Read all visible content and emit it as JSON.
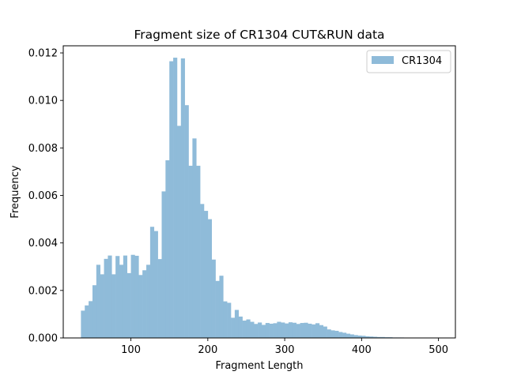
{
  "chart_data": {
    "type": "bar",
    "title": "Fragment size of CR1304 CUT&RUN data",
    "xlabel": "Fragment Length",
    "ylabel": "Frequency",
    "xlim": [
      12,
      522
    ],
    "ylim": [
      0,
      0.0123
    ],
    "x_ticks": [
      100,
      200,
      300,
      400,
      500
    ],
    "y_ticks": [
      0.0,
      0.002,
      0.004,
      0.006,
      0.008,
      0.01,
      0.012
    ],
    "x_tick_labels": [
      "100",
      "200",
      "300",
      "400",
      "500"
    ],
    "y_tick_labels": [
      "0.000",
      "0.002",
      "0.004",
      "0.006",
      "0.008",
      "0.010",
      "0.012"
    ],
    "legend_position": "top-right",
    "bin_start": 35,
    "bin_width": 5,
    "series": [
      {
        "name": "CR1304",
        "color": "#8fbbd9",
        "values": [
          0.00115,
          0.00137,
          0.00155,
          0.00222,
          0.00308,
          0.00268,
          0.00333,
          0.00347,
          0.00268,
          0.00345,
          0.00308,
          0.00347,
          0.00273,
          0.0035,
          0.00346,
          0.00265,
          0.00285,
          0.00308,
          0.00468,
          0.0045,
          0.00332,
          0.00617,
          0.00748,
          0.01165,
          0.0118,
          0.00893,
          0.01177,
          0.0098,
          0.00725,
          0.0084,
          0.00725,
          0.00564,
          0.00535,
          0.005,
          0.0033,
          0.0024,
          0.00262,
          0.00154,
          0.00148,
          0.00085,
          0.00118,
          0.0009,
          0.00073,
          0.00078,
          0.00068,
          0.00059,
          0.00065,
          0.00055,
          0.00063,
          0.0006,
          0.00062,
          0.00068,
          0.00065,
          0.00061,
          0.00066,
          0.00064,
          0.00059,
          0.00063,
          0.00064,
          0.0006,
          0.00057,
          0.00062,
          0.00054,
          0.00048,
          0.00036,
          0.00032,
          0.0003,
          0.00025,
          0.00022,
          0.00018,
          0.00015,
          0.00012,
          0.0001,
          9e-05,
          7e-05,
          6e-05,
          5e-05,
          4e-05,
          4e-05,
          3e-05,
          3e-05,
          2e-05,
          2e-05,
          2e-05,
          1e-05,
          1e-05,
          1e-05,
          1e-05,
          1e-05,
          1e-05,
          1e-05,
          1e-05,
          1e-05
        ]
      }
    ]
  }
}
